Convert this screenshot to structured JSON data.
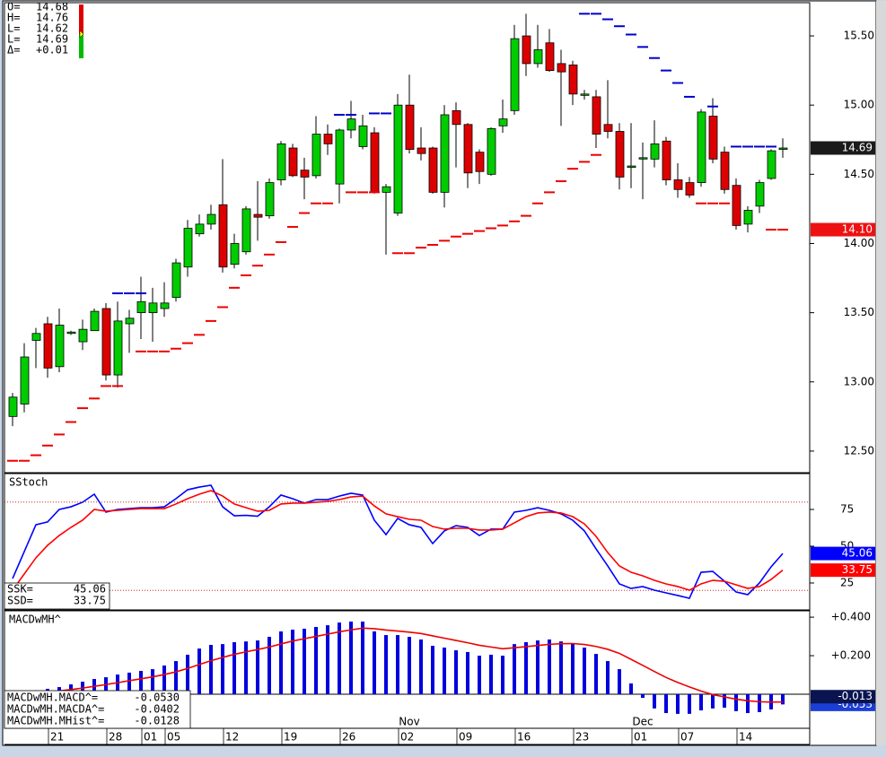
{
  "chart_data": [
    {
      "type": "candlestick",
      "categories": [
        null,
        null,
        null,
        null,
        "21",
        null,
        null,
        null,
        null,
        "28",
        null,
        null,
        "01",
        null,
        "05",
        null,
        null,
        null,
        null,
        "12",
        null,
        null,
        null,
        null,
        "19",
        null,
        null,
        null,
        null,
        "26",
        null,
        null,
        null,
        null,
        "02",
        null,
        null,
        null,
        null,
        "09",
        null,
        null,
        null,
        null,
        "16",
        null,
        null,
        null,
        null,
        "23",
        null,
        null,
        null,
        null,
        "01",
        null,
        null,
        null,
        "07",
        null,
        null,
        null,
        null,
        "14",
        null,
        null,
        null
      ],
      "months": [
        null,
        null,
        null,
        null,
        null,
        null,
        null,
        null,
        null,
        null,
        null,
        null,
        null,
        null,
        null,
        null,
        null,
        null,
        null,
        null,
        null,
        null,
        null,
        null,
        null,
        null,
        null,
        null,
        null,
        null,
        null,
        null,
        null,
        null,
        "Nov",
        null,
        null,
        null,
        null,
        null,
        null,
        null,
        null,
        null,
        null,
        null,
        null,
        null,
        null,
        null,
        null,
        null,
        null,
        null,
        "Dec",
        null,
        null,
        null,
        null,
        null,
        null,
        null,
        null,
        null,
        null,
        null,
        null
      ],
      "open": [
        12.75,
        12.84,
        13.3,
        13.42,
        13.11,
        13.35,
        13.29,
        13.37,
        13.53,
        13.05,
        13.42,
        13.5,
        13.5,
        13.53,
        13.61,
        13.83,
        14.07,
        14.14,
        14.28,
        13.85,
        13.94,
        14.21,
        14.2,
        14.46,
        14.69,
        14.53,
        14.49,
        14.79,
        14.43,
        14.82,
        14.7,
        14.8,
        14.37,
        14.22,
        15.0,
        14.69,
        14.69,
        14.37,
        14.96,
        14.86,
        14.66,
        14.5,
        14.85,
        14.96,
        15.5,
        15.3,
        15.45,
        15.3,
        15.29,
        15.08,
        15.06,
        14.86,
        14.81,
        14.55,
        14.62,
        14.61,
        14.74,
        14.46,
        14.44,
        14.44,
        14.92,
        14.66,
        14.42,
        14.14,
        14.27,
        14.47,
        14.68
      ],
      "high": [
        12.92,
        13.28,
        13.39,
        13.47,
        13.53,
        13.37,
        13.45,
        13.53,
        13.57,
        13.58,
        13.52,
        13.76,
        13.68,
        13.72,
        13.89,
        14.17,
        14.21,
        14.28,
        14.61,
        14.07,
        14.27,
        14.45,
        14.47,
        14.74,
        14.72,
        14.62,
        14.92,
        14.86,
        14.83,
        15.03,
        14.93,
        14.84,
        14.43,
        15.08,
        15.22,
        14.84,
        14.7,
        15.0,
        15.02,
        14.87,
        14.68,
        14.84,
        15.04,
        15.58,
        15.66,
        15.58,
        15.55,
        15.4,
        15.32,
        15.11,
        15.11,
        15.18,
        14.87,
        14.87,
        14.73,
        14.89,
        14.77,
        14.58,
        14.48,
        14.97,
        15.05,
        14.7,
        14.47,
        14.27,
        14.46,
        14.68,
        14.76
      ],
      "low": [
        12.68,
        12.78,
        13.1,
        13.03,
        13.07,
        13.34,
        13.23,
        13.37,
        13.01,
        12.96,
        13.21,
        13.31,
        13.29,
        13.47,
        13.58,
        13.76,
        14.05,
        14.1,
        13.79,
        13.82,
        13.92,
        14.02,
        14.18,
        14.42,
        14.48,
        14.32,
        14.47,
        14.64,
        14.29,
        14.76,
        14.68,
        14.36,
        13.92,
        14.2,
        14.65,
        14.6,
        14.36,
        14.26,
        14.55,
        14.4,
        14.43,
        14.49,
        14.8,
        14.93,
        15.21,
        15.27,
        15.24,
        14.85,
        15.0,
        15.04,
        14.69,
        14.76,
        14.39,
        14.4,
        14.32,
        14.55,
        14.42,
        14.33,
        14.33,
        14.41,
        14.58,
        14.36,
        14.1,
        14.08,
        14.22,
        14.46,
        14.62
      ],
      "close": [
        12.89,
        13.18,
        13.35,
        13.1,
        13.41,
        13.36,
        13.38,
        13.51,
        13.05,
        13.44,
        13.46,
        13.58,
        13.57,
        13.57,
        13.86,
        14.11,
        14.14,
        14.21,
        13.83,
        14.0,
        14.25,
        14.19,
        14.44,
        14.72,
        14.49,
        14.48,
        14.79,
        14.72,
        14.82,
        14.9,
        14.85,
        14.37,
        14.41,
        15.0,
        14.68,
        14.65,
        14.37,
        14.93,
        14.86,
        14.51,
        14.52,
        14.83,
        14.9,
        15.48,
        15.3,
        15.4,
        15.25,
        15.24,
        15.08,
        15.08,
        14.79,
        14.81,
        14.48,
        14.56,
        14.62,
        14.72,
        14.46,
        14.39,
        14.35,
        14.95,
        14.61,
        14.39,
        14.13,
        14.24,
        14.44,
        14.67,
        14.69
      ],
      "up_color": "#00cc00",
      "down_color": "#dd0000",
      "series": [
        {
          "color": "#ee0000",
          "values": [
            12.43,
            12.43,
            12.47,
            12.54,
            12.62,
            12.71,
            12.81,
            12.88,
            12.97,
            12.97,
            null,
            13.22,
            13.22,
            13.22,
            13.24,
            13.28,
            13.34,
            13.44,
            13.54,
            13.68,
            13.77,
            13.84,
            13.92,
            14.01,
            14.12,
            14.22,
            14.29,
            14.29,
            null,
            14.37,
            14.37,
            14.37,
            null,
            13.93,
            13.93,
            13.97,
            13.99,
            14.02,
            14.05,
            14.07,
            14.09,
            14.11,
            14.13,
            14.16,
            14.2,
            14.29,
            14.37,
            14.45,
            14.54,
            14.59,
            14.64,
            null,
            null,
            null,
            null,
            null,
            null,
            null,
            null,
            14.29,
            14.29,
            14.29,
            null,
            null,
            null,
            14.1,
            14.1
          ]
        },
        {
          "color": "#0000cc",
          "values": [
            null,
            null,
            null,
            null,
            null,
            null,
            null,
            null,
            null,
            13.64,
            13.64,
            13.64,
            null,
            null,
            null,
            null,
            null,
            null,
            null,
            null,
            null,
            null,
            null,
            null,
            null,
            null,
            null,
            null,
            14.93,
            14.93,
            null,
            14.94,
            14.94,
            null,
            null,
            null,
            null,
            null,
            null,
            null,
            null,
            null,
            null,
            null,
            null,
            null,
            null,
            null,
            null,
            15.66,
            15.66,
            15.62,
            15.57,
            15.51,
            15.42,
            15.34,
            15.25,
            15.16,
            15.06,
            null,
            14.99,
            null,
            14.7,
            14.7,
            14.7,
            14.7,
            null
          ]
        }
      ],
      "ylim": [
        12.344,
        15.74
      ],
      "yticks": [
        {
          "value": 12.5,
          "label": "12.50"
        },
        {
          "value": 13.0,
          "label": "13.00"
        },
        {
          "value": 13.5,
          "label": "13.50"
        },
        {
          "value": 14.0,
          "label": "14.00"
        },
        {
          "value": 14.5,
          "label": "14.50"
        },
        {
          "value": 15.0,
          "label": "15.00"
        },
        {
          "value": 15.5,
          "label": "15.50"
        }
      ],
      "badges": [
        {
          "value": 14.69,
          "label": "14.69",
          "color": "#1a1a1a"
        },
        {
          "value": 14.1,
          "label": "14.10",
          "color": "#ee1111"
        }
      ],
      "readout": [
        {
          "label": "O=",
          "value": "14.68"
        },
        {
          "label": "H=",
          "value": "14.76"
        },
        {
          "label": "L=",
          "value": "14.62"
        },
        {
          "label": "L=",
          "value": "14.69"
        },
        {
          "label": "Δ=",
          "value": "+0.01"
        }
      ]
    },
    {
      "type": "line",
      "title": "SStoch",
      "series": [
        {
          "color": "#0000ff",
          "values": [
            28.0,
            46.3,
            64.6,
            66.5,
            75.0,
            76.8,
            79.9,
            85.4,
            73.2,
            75.0,
            75.6,
            76.2,
            76.2,
            76.8,
            82.3,
            88.4,
            90.2,
            91.5,
            76.8,
            70.7,
            71.0,
            70.4,
            76.8,
            84.8,
            82.3,
            79.3,
            81.7,
            81.7,
            84.1,
            86.0,
            84.8,
            67.7,
            57.9,
            68.9,
            64.6,
            62.8,
            51.8,
            60.4,
            64.0,
            62.8,
            57.3,
            61.6,
            61.6,
            73.2,
            74.4,
            76.2,
            74.4,
            72.0,
            67.7,
            60.4,
            48.2,
            36.6,
            24.4,
            21.3,
            22.6,
            20.1,
            18.3,
            16.5,
            14.6,
            32.3,
            32.9,
            26.2,
            18.9,
            17.1,
            25.0,
            36.0,
            45.06
          ]
        },
        {
          "color": "#ff0000",
          "values": [
            20.1,
            31.1,
            42.1,
            50.6,
            57.3,
            62.8,
            67.7,
            75.0,
            73.8,
            74.4,
            75.0,
            75.6,
            75.6,
            75.6,
            78.7,
            82.3,
            85.4,
            87.8,
            84.1,
            78.7,
            76.2,
            73.8,
            74.4,
            78.7,
            79.3,
            79.3,
            79.9,
            80.5,
            81.7,
            83.5,
            84.1,
            77.4,
            72.0,
            70.1,
            68.3,
            67.7,
            63.4,
            61.6,
            62.2,
            62.2,
            61.0,
            61.0,
            61.6,
            65.9,
            70.1,
            72.6,
            73.2,
            72.6,
            70.1,
            65.2,
            56.7,
            45.7,
            36.6,
            32.3,
            29.9,
            26.8,
            24.4,
            22.6,
            20.1,
            24.4,
            26.8,
            26.2,
            23.8,
            21.3,
            22.6,
            27.4,
            33.75
          ]
        }
      ],
      "ylim": [
        6.7,
        99.4
      ],
      "yticks": [
        25,
        50,
        75
      ],
      "levels": [
        80,
        20
      ],
      "level_color": "#cc0000",
      "badges": [
        {
          "value": 45.06,
          "label": "45.06",
          "color": "#0000ff"
        },
        {
          "value": 33.75,
          "label": "33.75",
          "color": "#ff0000"
        }
      ],
      "readout": [
        {
          "label": "SSK=",
          "value": "45.06"
        },
        {
          "label": "SSD=",
          "value": "33.75"
        }
      ]
    },
    {
      "type": "combo",
      "title": "MACDwMH^",
      "series": [
        {
          "style": "bar",
          "color": "#0000dd",
          "values": [
            0.005,
            0.01,
            0.019,
            0.028,
            0.037,
            0.051,
            0.065,
            0.079,
            0.088,
            0.102,
            0.112,
            0.121,
            0.13,
            0.149,
            0.172,
            0.205,
            0.237,
            0.256,
            0.26,
            0.27,
            0.274,
            0.279,
            0.298,
            0.326,
            0.335,
            0.34,
            0.349,
            0.358,
            0.372,
            0.377,
            0.377,
            0.326,
            0.307,
            0.307,
            0.298,
            0.284,
            0.251,
            0.242,
            0.228,
            0.219,
            0.2,
            0.205,
            0.2,
            0.26,
            0.27,
            0.279,
            0.284,
            0.274,
            0.265,
            0.242,
            0.209,
            0.172,
            0.13,
            0.056,
            -0.019,
            -0.074,
            -0.098,
            -0.102,
            -0.102,
            -0.084,
            -0.074,
            -0.07,
            -0.088,
            -0.098,
            -0.093,
            -0.079,
            -0.053
          ]
        },
        {
          "style": "line",
          "color": "#ee0000",
          "values": [
            0.002,
            0.004,
            0.007,
            0.012,
            0.017,
            0.024,
            0.032,
            0.041,
            0.05,
            0.06,
            0.07,
            0.08,
            0.09,
            0.102,
            0.116,
            0.134,
            0.154,
            0.174,
            0.191,
            0.207,
            0.22,
            0.232,
            0.245,
            0.261,
            0.276,
            0.288,
            0.3,
            0.312,
            0.324,
            0.334,
            0.343,
            0.34,
            0.333,
            0.328,
            0.322,
            0.315,
            0.303,
            0.291,
            0.279,
            0.267,
            0.254,
            0.245,
            0.236,
            0.241,
            0.247,
            0.253,
            0.259,
            0.262,
            0.263,
            0.258,
            0.248,
            0.233,
            0.212,
            0.181,
            0.15,
            0.118,
            0.087,
            0.061,
            0.038,
            0.016,
            -0.002,
            -0.014,
            -0.026,
            -0.034,
            -0.039,
            -0.041,
            -0.0402
          ]
        }
      ],
      "ylim": [
        -0.177,
        0.433
      ],
      "yticks": [
        {
          "value": 0.4,
          "label": "+0.400"
        },
        {
          "value": 0.2,
          "label": "+0.200"
        }
      ],
      "badges": [
        {
          "value": -0.053,
          "label": "-0.053",
          "color": "#1b3fd6"
        },
        {
          "value": -0.0128,
          "label": "-0.013",
          "color": "#0a1450"
        }
      ],
      "readout": [
        {
          "label": "MACDwMH.MACD^=",
          "value": "-0.0530"
        },
        {
          "label": "MACDwMH.MACDA^=",
          "value": "-0.0402"
        },
        {
          "label": "MACDwMH.MHist^=",
          "value": "-0.0128"
        }
      ]
    }
  ]
}
